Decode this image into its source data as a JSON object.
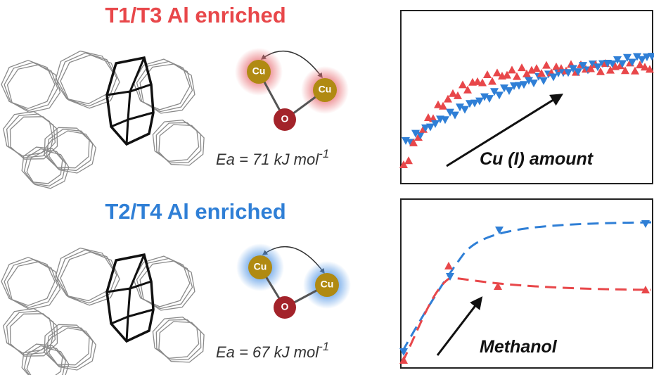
{
  "panels": [
    {
      "title": "T1/T3 Al enriched",
      "atoms": [
        "Cu",
        "Cu",
        "O"
      ],
      "energy": {
        "text": "Ea = 71 kJ mol",
        "superscript": "-1"
      },
      "plot_label": "Cu (I) amount"
    },
    {
      "title": "T2/T4 Al enriched",
      "atoms": [
        "Cu",
        "Cu",
        "O"
      ],
      "energy": {
        "text": "Ea = 67 kJ mol",
        "superscript": "-1"
      },
      "plot_label": "Methanol"
    }
  ]
}
